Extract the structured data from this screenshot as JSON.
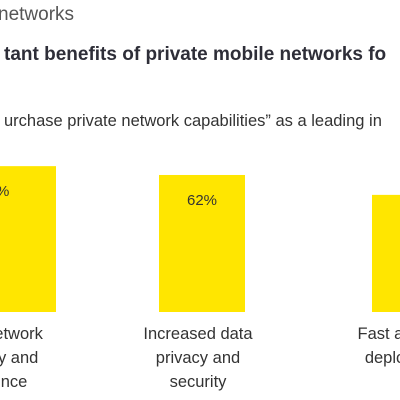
{
  "header": {
    "section_label": "networks",
    "title": "tant benefits of private mobile networks fo",
    "subtitle": "urchase private network capabilities” as a leading in"
  },
  "colors": {
    "bar": "#ffe600",
    "text": "#333333"
  },
  "chart_data": {
    "type": "bar",
    "categories": [
      [
        "network",
        "cy and",
        "nce"
      ],
      [
        "Increased data",
        "privacy and",
        "security"
      ],
      [
        "Fast an",
        "deplo"
      ]
    ],
    "values": [
      66,
      62,
      53
    ],
    "data_labels": [
      "%",
      "62%",
      ""
    ],
    "ylim": [
      0,
      100
    ],
    "grid": false,
    "legend": "none"
  }
}
